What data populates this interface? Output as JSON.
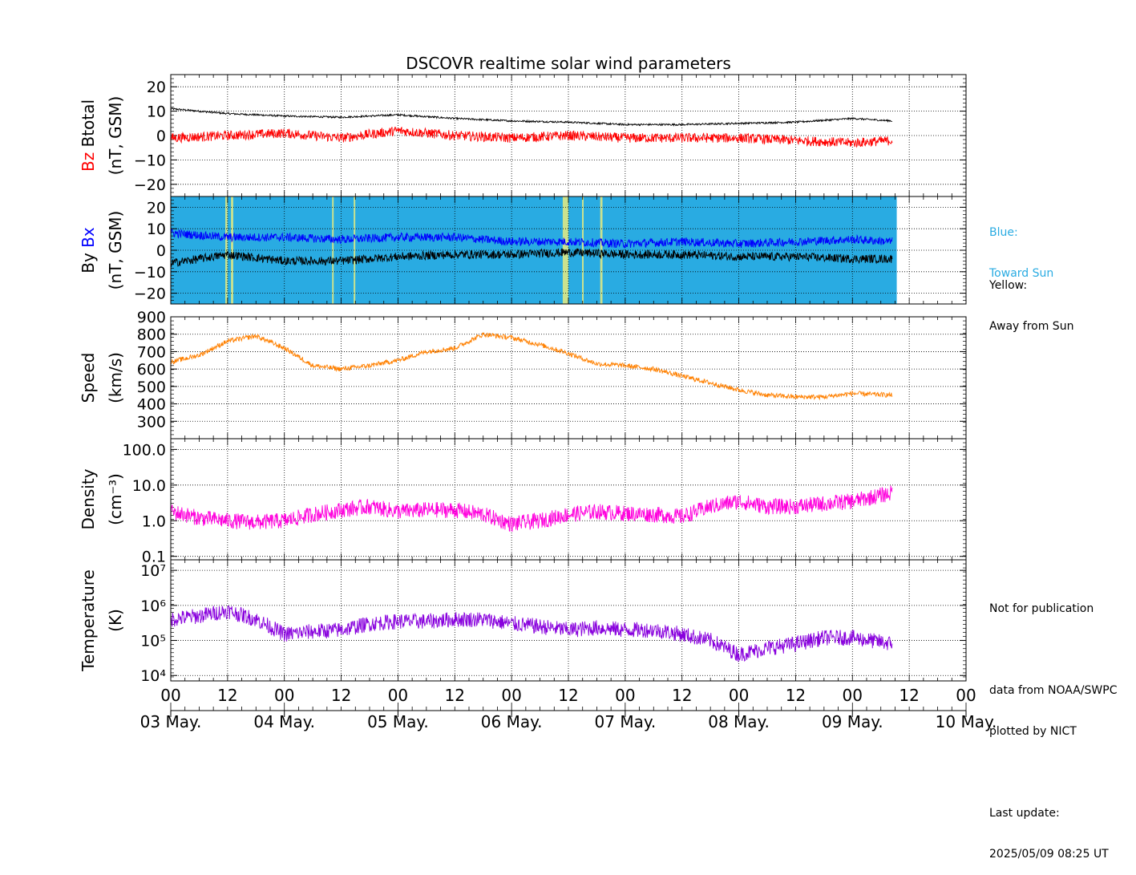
{
  "title": "DSCOVR realtime solar wind parameters",
  "notes": {
    "blue_label": "Blue:",
    "blue_desc": "Toward Sun",
    "yellow_label": "Yellow:",
    "yellow_desc": "Away from Sun",
    "not_pub": "Not for publication",
    "data_from": "data from NOAA/SWPC",
    "plotted_by": "plotted by NICT",
    "last_update_label": "Last update:",
    "last_update": "2025/05/09 08:25 UT"
  },
  "colors": {
    "btotal": "#000000",
    "bz": "#ff0000",
    "bx": "#0000ff",
    "by": "#000000",
    "toward_sun_bg": "#29abe2",
    "away_sun_band": "#f3f07a",
    "speed": "#ff8000",
    "density": "#ff00dd",
    "temperature": "#8800dd"
  },
  "chart_data": [
    {
      "type": "line",
      "panel": "Btotal/Bz",
      "ylabel": [
        "Bz",
        "Btotal",
        "(nT, GSM)"
      ],
      "ylim": [
        -25,
        25
      ],
      "yticks": [
        "20",
        "10",
        "0",
        "−10",
        "−20"
      ],
      "ytick_values": [
        20,
        10,
        0,
        -10,
        -20
      ],
      "x_days": [
        0,
        0.5,
        1,
        1.5,
        2,
        2.5,
        3,
        3.5,
        4,
        4.5,
        5,
        5.5,
        6,
        6.35
      ],
      "series": [
        {
          "name": "Btotal",
          "values": [
            11,
            9,
            8,
            7.5,
            8.5,
            7,
            6,
            5.5,
            4.5,
            4.5,
            5,
            5.5,
            7,
            6
          ]
        },
        {
          "name": "Bz",
          "values": [
            -1,
            0,
            1,
            -1,
            2,
            0,
            -1,
            0,
            -1,
            -1,
            -1,
            -2,
            -3,
            -2
          ]
        }
      ]
    },
    {
      "type": "line",
      "panel": "Bx/By",
      "ylabel": [
        "By",
        "Bx",
        "(nT, GSM)"
      ],
      "ylim": [
        -25,
        25
      ],
      "yticks": [
        "20",
        "10",
        "0",
        "−10",
        "−20"
      ],
      "ytick_values": [
        20,
        10,
        0,
        -10,
        -20
      ],
      "x_days": [
        0,
        0.5,
        1,
        1.5,
        2,
        2.5,
        3,
        3.5,
        4,
        4.5,
        5,
        5.5,
        6,
        6.35
      ],
      "series": [
        {
          "name": "Bx",
          "values": [
            8,
            6,
            6,
            5,
            6,
            6,
            4,
            4,
            3,
            4,
            3,
            4,
            5,
            4
          ]
        },
        {
          "name": "By",
          "values": [
            -6,
            -2,
            -5,
            -5,
            -3,
            -2,
            -2,
            -1,
            -2,
            -2,
            -3,
            -3,
            -4,
            -4
          ]
        }
      ],
      "away_from_sun_intervals": [
        [
          0.48,
          0.5
        ],
        [
          0.53,
          0.55
        ],
        [
          1.42,
          1.43
        ],
        [
          1.61,
          1.62
        ],
        [
          3.45,
          3.5
        ],
        [
          3.62,
          3.63
        ],
        [
          3.78,
          3.8
        ]
      ]
    },
    {
      "type": "line",
      "panel": "Speed",
      "ylabel": [
        "Speed",
        "(km/s)"
      ],
      "ylim": [
        200,
        900
      ],
      "yticks": [
        "900",
        "800",
        "700",
        "600",
        "500",
        "400",
        "300"
      ],
      "ytick_values": [
        900,
        800,
        700,
        600,
        500,
        400,
        300
      ],
      "x_days": [
        0,
        0.25,
        0.5,
        0.75,
        1,
        1.25,
        1.5,
        1.75,
        2,
        2.25,
        2.5,
        2.75,
        3,
        3.25,
        3.5,
        3.75,
        4,
        4.25,
        4.5,
        4.75,
        5,
        5.25,
        5.5,
        5.75,
        6,
        6.35
      ],
      "series": [
        {
          "name": "Speed",
          "values": [
            640,
            680,
            760,
            790,
            720,
            620,
            600,
            620,
            650,
            700,
            720,
            800,
            780,
            740,
            690,
            630,
            620,
            600,
            560,
            520,
            480,
            450,
            440,
            440,
            460,
            450
          ]
        }
      ]
    },
    {
      "type": "line",
      "panel": "Density",
      "ylabel": [
        "Density",
        "(cm⁻³)"
      ],
      "yscale": "log",
      "ylim": [
        0.08,
        200
      ],
      "yticks": [
        "100.0",
        "10.0",
        "1.0",
        "0.1"
      ],
      "ytick_values": [
        100,
        10,
        1,
        0.1
      ],
      "x_days": [
        0,
        0.25,
        0.5,
        0.75,
        1,
        1.25,
        1.5,
        1.75,
        2,
        2.25,
        2.5,
        2.75,
        3,
        3.25,
        3.5,
        3.75,
        4,
        4.25,
        4.5,
        4.75,
        5,
        5.25,
        5.5,
        5.75,
        6,
        6.35
      ],
      "series": [
        {
          "name": "Density",
          "values": [
            1.8,
            1.2,
            1.0,
            0.9,
            1.0,
            1.5,
            2.0,
            2.5,
            1.8,
            2.0,
            2.0,
            1.5,
            0.8,
            1.0,
            1.5,
            1.8,
            1.6,
            1.5,
            1.3,
            2.5,
            3.5,
            2.5,
            2.5,
            3,
            3.5,
            6
          ]
        }
      ]
    },
    {
      "type": "line",
      "panel": "Temperature",
      "ylabel": [
        "Temperature",
        "(K)"
      ],
      "yscale": "log",
      "ylim": [
        7000,
        20000000
      ],
      "yticks": [
        "10⁷",
        "10⁶",
        "10⁵",
        "10⁴"
      ],
      "ytick_values": [
        10000000,
        1000000,
        100000,
        10000
      ],
      "x_days": [
        0,
        0.25,
        0.5,
        0.75,
        1,
        1.25,
        1.5,
        1.75,
        2,
        2.25,
        2.5,
        2.75,
        3,
        3.25,
        3.5,
        3.75,
        4,
        4.25,
        4.5,
        4.75,
        5,
        5.25,
        5.5,
        5.75,
        6,
        6.35
      ],
      "series": [
        {
          "name": "Temperature",
          "values": [
            400000,
            500000,
            700000,
            400000,
            150000,
            180000,
            200000,
            300000,
            350000,
            350000,
            400000,
            400000,
            300000,
            250000,
            200000,
            230000,
            200000,
            200000,
            150000,
            100000,
            40000,
            60000,
            80000,
            120000,
            120000,
            80000
          ]
        }
      ]
    }
  ],
  "x_axis": {
    "hour_labels": [
      "00",
      "12",
      "00",
      "12",
      "00",
      "12",
      "00",
      "12",
      "00",
      "12",
      "00",
      "12",
      "00",
      "12",
      "00"
    ],
    "day_labels": [
      "03 May.",
      "04 May.",
      "05 May.",
      "06 May.",
      "07 May.",
      "08 May.",
      "09 May.",
      "10 May."
    ],
    "xlim_days": [
      0,
      7
    ]
  }
}
